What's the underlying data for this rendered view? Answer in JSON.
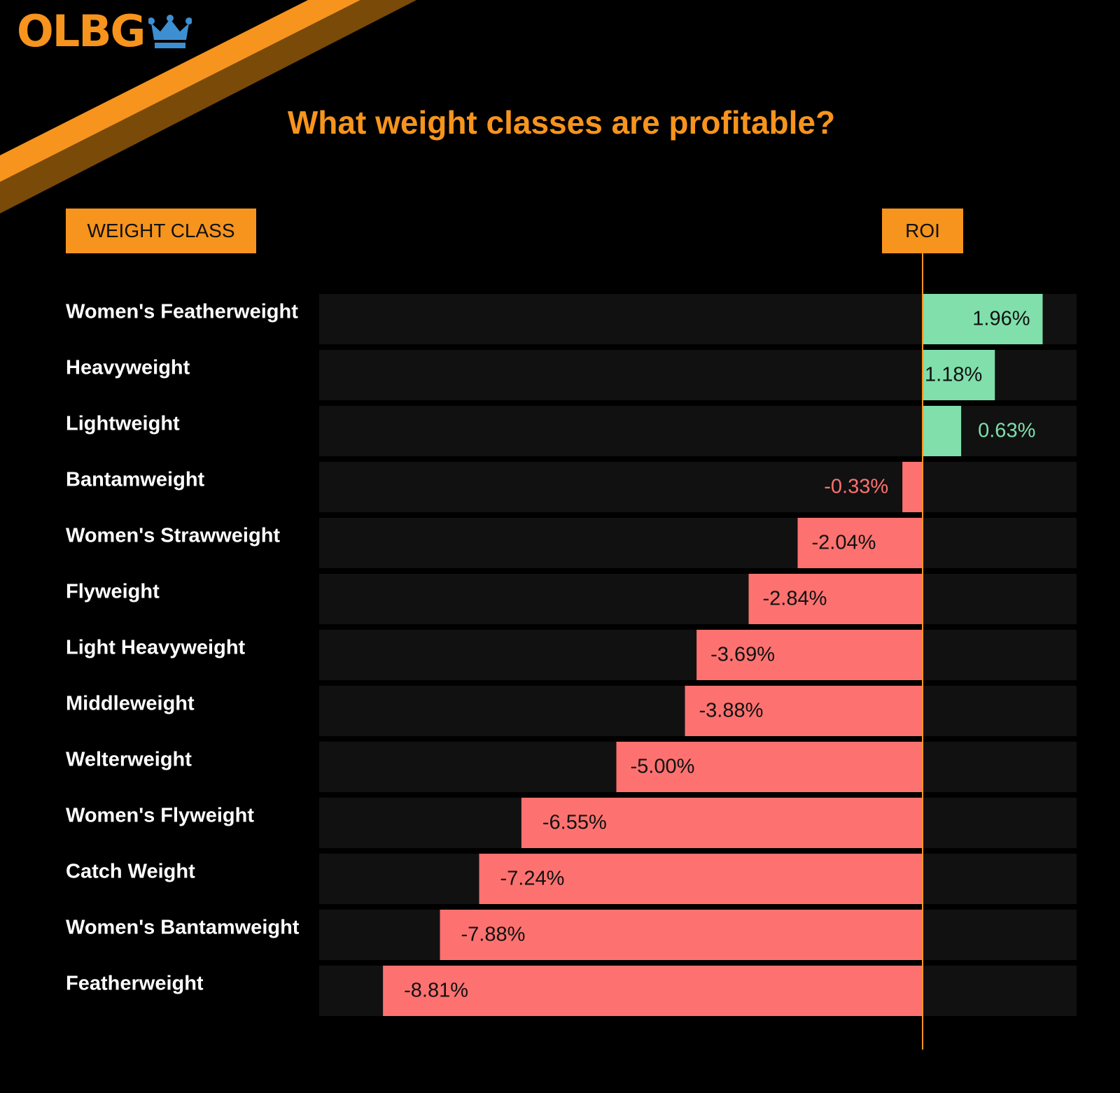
{
  "brand": {
    "logo_text": "OLBG"
  },
  "title": "What weight classes are profitable?",
  "headers": {
    "weight_class": "WEIGHT CLASS",
    "roi": "ROI"
  },
  "colors": {
    "background": "#000000",
    "accent": "#f7941d",
    "positive": "#80dfab",
    "negative": "#fd7270",
    "row_track": "#111111",
    "crown": "#3d8fd1"
  },
  "chart_data": {
    "type": "bar",
    "orientation": "horizontal",
    "title": "What weight classes are profitable?",
    "xlabel": "ROI",
    "ylabel": "WEIGHT CLASS",
    "categories": [
      "Women's Featherweight",
      "Heavyweight",
      "Lightweight",
      "Bantamweight",
      "Women's Strawweight",
      "Flyweight",
      "Light Heavyweight",
      "Middleweight",
      "Welterweight",
      "Women's Flyweight",
      "Catch Weight",
      "Women's Bantamweight",
      "Featherweight"
    ],
    "values": [
      1.96,
      1.18,
      0.63,
      -0.33,
      -2.04,
      -2.84,
      -3.69,
      -3.88,
      -5.0,
      -6.55,
      -7.24,
      -7.88,
      -8.81
    ],
    "labels": [
      "1.96%",
      "1.18%",
      "0.63%",
      "-0.33%",
      "-2.04%",
      "-2.84%",
      "-3.69%",
      "-3.88%",
      "-5.00%",
      "-6.55%",
      "-7.24%",
      "-7.88%",
      "-8.81%"
    ],
    "unit": "%",
    "xlim": [
      -9.9,
      2.5
    ],
    "grid": false,
    "legend": "none"
  }
}
